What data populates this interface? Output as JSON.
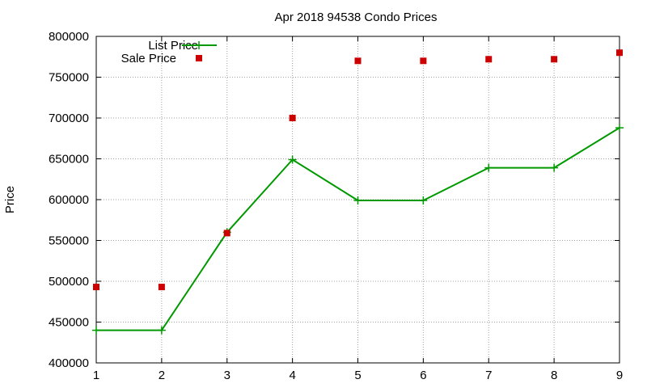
{
  "chart_data": {
    "type": "line",
    "title": "Apr 2018 94538 Condo Prices",
    "xlabel": "",
    "ylabel": "Price",
    "xlim": [
      1,
      9
    ],
    "ylim": [
      400000,
      800000
    ],
    "x_ticks": [
      1,
      2,
      3,
      4,
      5,
      6,
      7,
      8,
      9
    ],
    "y_ticks": [
      400000,
      450000,
      500000,
      550000,
      600000,
      650000,
      700000,
      750000,
      800000
    ],
    "grid": true,
    "legend_position": "top-left",
    "series": [
      {
        "name": "List Price",
        "style": "line-with-plus-markers",
        "color": "#009900",
        "x": [
          1,
          2,
          3,
          4,
          5,
          6,
          7,
          8,
          9
        ],
        "values": [
          440000,
          440000,
          560000,
          649000,
          599000,
          599000,
          639000,
          639000,
          688000
        ]
      },
      {
        "name": "Sale Price",
        "style": "square-markers",
        "color": "#cc0000",
        "x": [
          1,
          2,
          3,
          4,
          5,
          6,
          7,
          8,
          9
        ],
        "values": [
          493000,
          493000,
          559000,
          700000,
          770000,
          770000,
          772000,
          772000,
          780000
        ]
      }
    ]
  }
}
